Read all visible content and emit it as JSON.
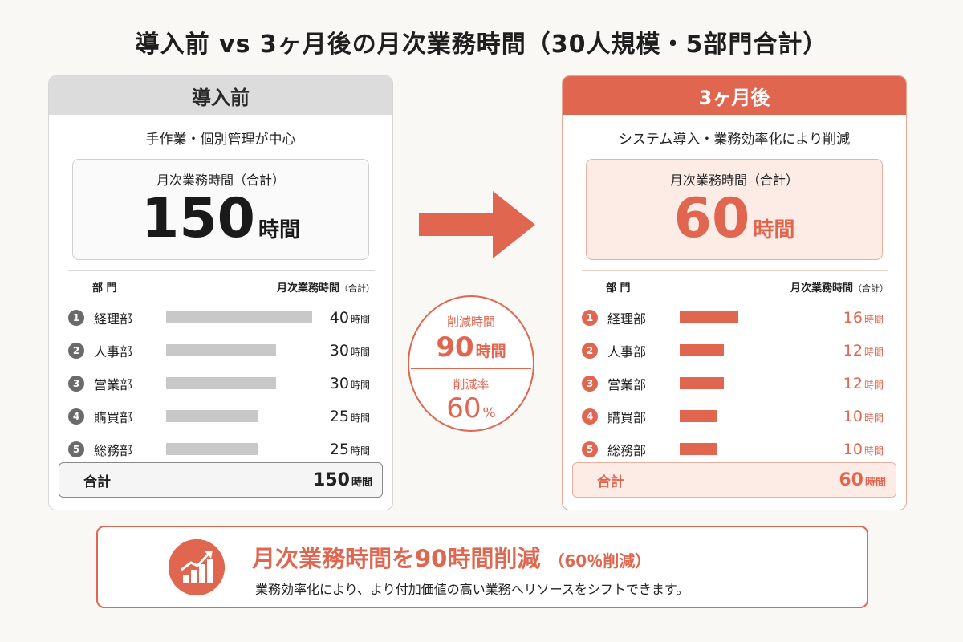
{
  "title": "導入前 vs 3ヶ月後の月次業務時間（30人規模・5部門合計）",
  "before": {
    "heading": "導入前",
    "subtitle": "手作業・個別管理が中心",
    "total_label": "月次業務時間（合計）",
    "total_value": "150",
    "total_unit": "時間",
    "col_dept": "部 門",
    "col_time": "月次業務時間",
    "col_time_note": "（合計）",
    "sum_label": "合計",
    "sum_value": "150",
    "sum_unit": "時間"
  },
  "after": {
    "heading": "3ヶ月後",
    "subtitle": "システム導入・業務効率化により削減",
    "total_label": "月次業務時間（合計）",
    "total_value": "60",
    "total_unit": "時間",
    "col_dept": "部 門",
    "col_time": "月次業務時間",
    "col_time_note": "（合計）",
    "sum_label": "合計",
    "sum_value": "60",
    "sum_unit": "時間"
  },
  "reduction": {
    "time_label": "削減時間",
    "time_value": "90",
    "time_unit": "時間",
    "rate_label": "削減率",
    "rate_value": "60",
    "rate_unit": "%"
  },
  "banner": {
    "main": "月次業務時間を90時間削減",
    "main_note": "（60％削減）",
    "sub": "業務効率化により、より付加価値の高い業務へリソースをシフトできます。"
  },
  "chart_data": [
    {
      "type": "bar",
      "title": "導入前",
      "unit": "時間",
      "categories": [
        "経理部",
        "人事部",
        "営業部",
        "購買部",
        "総務部"
      ],
      "numbers": [
        "1",
        "2",
        "3",
        "4",
        "5"
      ],
      "values": [
        40,
        30,
        30,
        25,
        25
      ],
      "total": 150,
      "xlim": [
        0,
        40
      ],
      "color": "#c8c8c8"
    },
    {
      "type": "bar",
      "title": "3ヶ月後",
      "unit": "時間",
      "categories": [
        "経理部",
        "人事部",
        "営業部",
        "購買部",
        "総務部"
      ],
      "numbers": [
        "1",
        "2",
        "3",
        "4",
        "5"
      ],
      "values": [
        16,
        12,
        12,
        10,
        10
      ],
      "total": 60,
      "xlim": [
        0,
        40
      ],
      "color": "#e0664f"
    }
  ],
  "colors": {
    "accent": "#e0664f",
    "neutral_bar": "#c8c8c8",
    "background": "#faf8f5"
  }
}
